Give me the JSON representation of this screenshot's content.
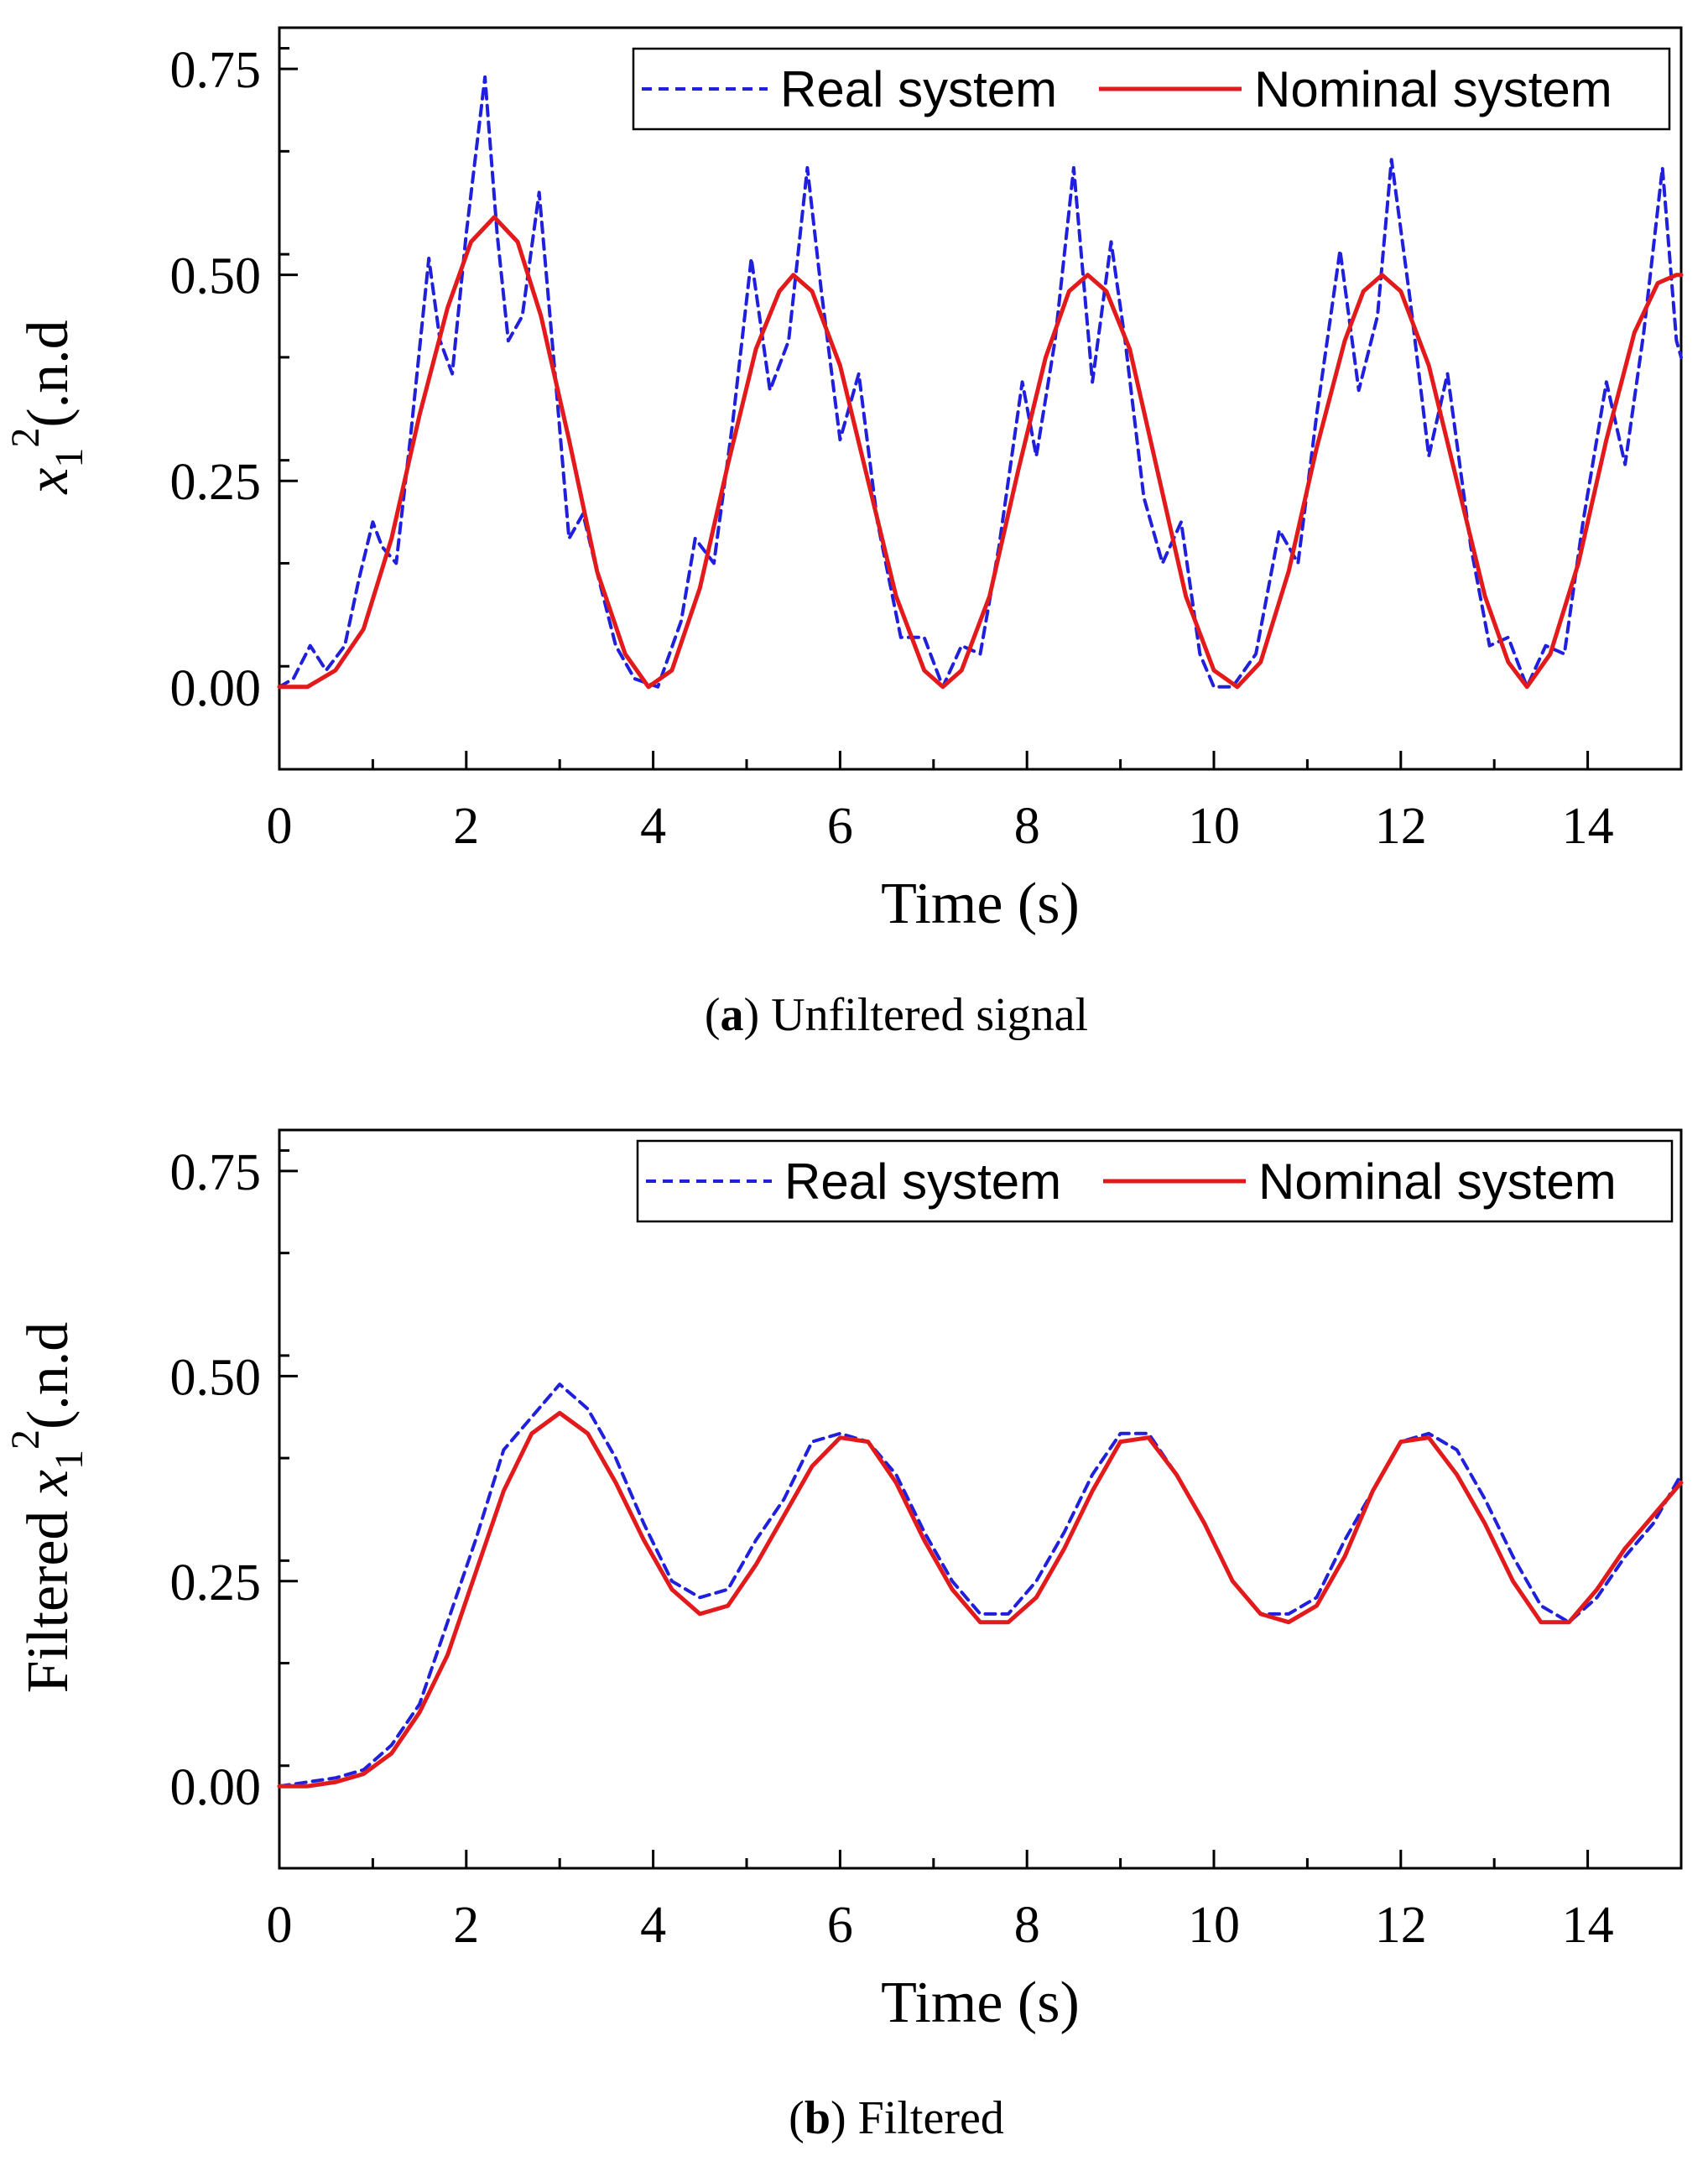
{
  "chart_data": [
    {
      "type": "line",
      "caption": {
        "letter": "a",
        "text": "Unfiltered signal"
      },
      "ylabel": {
        "prefix": "",
        "var": "x",
        "sub": "1",
        "sup": "2",
        "suffix": "(.n.d"
      },
      "xlabel": "Time (s)",
      "xlim": [
        0,
        15
      ],
      "ylim": [
        -0.1,
        0.8
      ],
      "x_ticks": [
        0,
        2,
        4,
        6,
        8,
        10,
        12,
        14
      ],
      "x_tick_labels": [
        "0",
        "2",
        "4",
        "6",
        "8",
        "10",
        "12",
        "14"
      ],
      "y_ticks": [
        0,
        0.25,
        0.5,
        0.75
      ],
      "y_tick_labels": [
        "0.00",
        "0.25",
        "0.50",
        "0.75"
      ],
      "legend": {
        "position": "top-right",
        "entries": [
          "Real system",
          "Nominal system"
        ]
      },
      "series": [
        {
          "name": "Real system",
          "color": "#1f1fdc",
          "style": "dashed",
          "x": [
            0,
            0.15,
            0.33,
            0.5,
            0.7,
            0.85,
            1.0,
            1.1,
            1.25,
            1.4,
            1.6,
            1.72,
            1.85,
            2.0,
            2.2,
            2.33,
            2.45,
            2.6,
            2.78,
            2.95,
            3.1,
            3.25,
            3.42,
            3.6,
            3.8,
            4.05,
            4.3,
            4.45,
            4.65,
            4.85,
            5.05,
            5.25,
            5.45,
            5.65,
            5.8,
            6.0,
            6.2,
            6.4,
            6.65,
            6.9,
            7.1,
            7.3,
            7.5,
            7.7,
            7.95,
            8.1,
            8.3,
            8.5,
            8.7,
            8.9,
            9.05,
            9.25,
            9.45,
            9.65,
            9.85,
            10.0,
            10.2,
            10.45,
            10.7,
            10.9,
            11.1,
            11.35,
            11.55,
            11.75,
            11.9,
            12.1,
            12.3,
            12.5,
            12.75,
            12.95,
            13.15,
            13.35,
            13.55,
            13.75,
            13.95,
            14.2,
            14.4,
            14.6,
            14.8,
            14.95,
            15.0
          ],
          "y": [
            0.0,
            0.01,
            0.05,
            0.02,
            0.05,
            0.13,
            0.2,
            0.17,
            0.15,
            0.3,
            0.52,
            0.42,
            0.38,
            0.55,
            0.74,
            0.55,
            0.42,
            0.45,
            0.6,
            0.38,
            0.18,
            0.21,
            0.13,
            0.05,
            0.01,
            0.0,
            0.08,
            0.18,
            0.15,
            0.32,
            0.52,
            0.36,
            0.42,
            0.63,
            0.48,
            0.3,
            0.38,
            0.2,
            0.06,
            0.06,
            0.0,
            0.05,
            0.04,
            0.17,
            0.37,
            0.28,
            0.42,
            0.63,
            0.37,
            0.54,
            0.42,
            0.23,
            0.15,
            0.2,
            0.04,
            0.0,
            0.0,
            0.04,
            0.19,
            0.15,
            0.33,
            0.53,
            0.36,
            0.45,
            0.64,
            0.47,
            0.28,
            0.38,
            0.17,
            0.05,
            0.06,
            0.0,
            0.05,
            0.04,
            0.2,
            0.37,
            0.27,
            0.43,
            0.63,
            0.42,
            0.4
          ]
        },
        {
          "name": "Nominal system",
          "color": "#e31a1c",
          "style": "solid",
          "x": [
            0,
            0.3,
            0.6,
            0.9,
            1.2,
            1.5,
            1.8,
            2.05,
            2.3,
            2.55,
            2.8,
            3.1,
            3.4,
            3.7,
            3.95,
            4.2,
            4.5,
            4.8,
            5.1,
            5.35,
            5.5,
            5.7,
            6.0,
            6.3,
            6.6,
            6.9,
            7.1,
            7.3,
            7.6,
            7.9,
            8.2,
            8.45,
            8.65,
            8.85,
            9.1,
            9.4,
            9.7,
            10.0,
            10.25,
            10.5,
            10.8,
            11.1,
            11.4,
            11.6,
            11.8,
            12.0,
            12.3,
            12.6,
            12.9,
            13.15,
            13.35,
            13.6,
            13.9,
            14.2,
            14.5,
            14.75,
            14.95,
            15.0
          ],
          "y": [
            0.0,
            0.0,
            0.02,
            0.07,
            0.18,
            0.33,
            0.46,
            0.54,
            0.57,
            0.54,
            0.45,
            0.3,
            0.14,
            0.04,
            0.0,
            0.02,
            0.12,
            0.27,
            0.41,
            0.48,
            0.5,
            0.48,
            0.39,
            0.25,
            0.11,
            0.02,
            0.0,
            0.02,
            0.11,
            0.26,
            0.4,
            0.48,
            0.5,
            0.48,
            0.41,
            0.26,
            0.11,
            0.02,
            0.0,
            0.03,
            0.14,
            0.29,
            0.42,
            0.48,
            0.5,
            0.48,
            0.39,
            0.25,
            0.11,
            0.03,
            0.0,
            0.04,
            0.15,
            0.3,
            0.43,
            0.49,
            0.5,
            0.5
          ]
        }
      ]
    },
    {
      "type": "line",
      "caption": {
        "letter": "b",
        "text": "Filtered"
      },
      "ylabel": {
        "prefix": "Filtered ",
        "var": "x",
        "sub": "1",
        "sup": "2",
        "suffix": "(.n.d"
      },
      "xlabel": "Time (s)",
      "xlim": [
        0,
        15
      ],
      "ylim": [
        -0.1,
        0.8
      ],
      "x_ticks": [
        0,
        2,
        4,
        6,
        8,
        10,
        12,
        14
      ],
      "x_tick_labels": [
        "0",
        "2",
        "4",
        "6",
        "8",
        "10",
        "12",
        "14"
      ],
      "y_ticks": [
        0,
        0.25,
        0.5,
        0.75
      ],
      "y_tick_labels": [
        "0.00",
        "0.25",
        "0.50",
        "0.75"
      ],
      "legend": {
        "position": "top-right",
        "entries": [
          "Real system",
          "Nominal system"
        ]
      },
      "series": [
        {
          "name": "Real system",
          "color": "#1f1fdc",
          "style": "dashed",
          "x": [
            0,
            0.3,
            0.6,
            0.9,
            1.2,
            1.5,
            1.8,
            2.1,
            2.4,
            2.7,
            3.0,
            3.3,
            3.6,
            3.9,
            4.2,
            4.5,
            4.8,
            5.1,
            5.4,
            5.7,
            6.0,
            6.3,
            6.6,
            6.9,
            7.2,
            7.5,
            7.8,
            8.1,
            8.4,
            8.7,
            9.0,
            9.3,
            9.6,
            9.9,
            10.2,
            10.5,
            10.8,
            11.1,
            11.4,
            11.7,
            12.0,
            12.3,
            12.6,
            12.9,
            13.2,
            13.5,
            13.8,
            14.1,
            14.4,
            14.7,
            15.0
          ],
          "y": [
            0.0,
            0.005,
            0.01,
            0.02,
            0.05,
            0.1,
            0.2,
            0.3,
            0.41,
            0.45,
            0.49,
            0.46,
            0.4,
            0.32,
            0.25,
            0.23,
            0.24,
            0.3,
            0.35,
            0.42,
            0.43,
            0.42,
            0.38,
            0.31,
            0.25,
            0.21,
            0.21,
            0.25,
            0.31,
            0.38,
            0.43,
            0.43,
            0.38,
            0.32,
            0.25,
            0.21,
            0.21,
            0.23,
            0.3,
            0.36,
            0.42,
            0.43,
            0.41,
            0.35,
            0.28,
            0.22,
            0.2,
            0.23,
            0.28,
            0.32,
            0.38
          ]
        },
        {
          "name": "Nominal system",
          "color": "#e31a1c",
          "style": "solid",
          "x": [
            0,
            0.3,
            0.6,
            0.9,
            1.2,
            1.5,
            1.8,
            2.1,
            2.4,
            2.7,
            3.0,
            3.3,
            3.6,
            3.9,
            4.2,
            4.5,
            4.8,
            5.1,
            5.4,
            5.7,
            6.0,
            6.3,
            6.6,
            6.9,
            7.2,
            7.5,
            7.8,
            8.1,
            8.4,
            8.7,
            9.0,
            9.3,
            9.6,
            9.9,
            10.2,
            10.5,
            10.8,
            11.1,
            11.4,
            11.7,
            12.0,
            12.3,
            12.6,
            12.9,
            13.2,
            13.5,
            13.8,
            14.1,
            14.4,
            14.7,
            15.0
          ],
          "y": [
            0.0,
            0.0,
            0.005,
            0.015,
            0.04,
            0.09,
            0.16,
            0.26,
            0.36,
            0.43,
            0.455,
            0.43,
            0.37,
            0.3,
            0.24,
            0.21,
            0.22,
            0.27,
            0.33,
            0.39,
            0.425,
            0.42,
            0.37,
            0.3,
            0.24,
            0.2,
            0.2,
            0.23,
            0.29,
            0.36,
            0.42,
            0.425,
            0.38,
            0.32,
            0.25,
            0.21,
            0.2,
            0.22,
            0.28,
            0.36,
            0.42,
            0.425,
            0.38,
            0.32,
            0.25,
            0.2,
            0.2,
            0.24,
            0.29,
            0.33,
            0.37
          ]
        }
      ]
    }
  ]
}
